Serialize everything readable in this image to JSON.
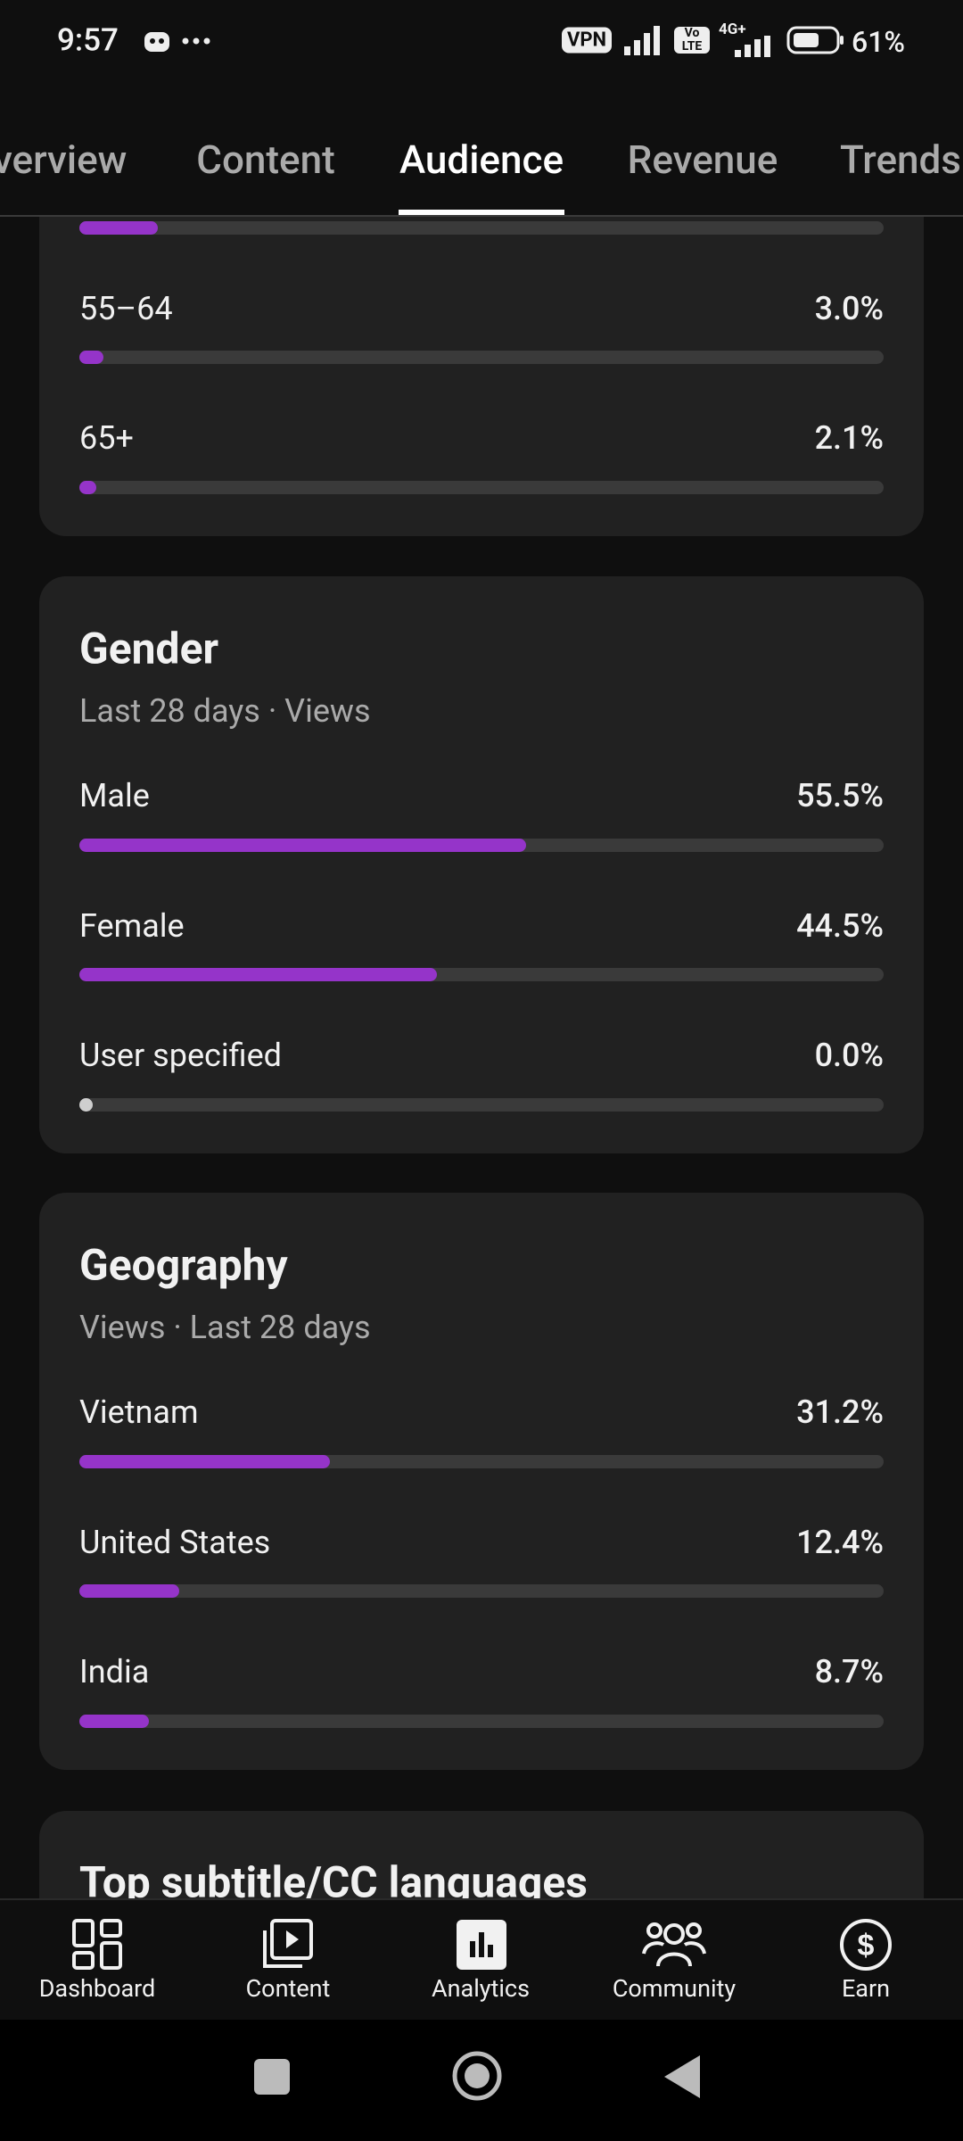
{
  "status_bar": {
    "time": "9:57",
    "vpn": "VPN",
    "volte": "Vo LTE",
    "network": "4G+",
    "battery": "61%"
  },
  "tabs": [
    "Overview",
    "Content",
    "Audience",
    "Revenue",
    "Trends"
  ],
  "selected_tab": 2,
  "bar_color": "#9534c9",
  "sections": [
    {
      "categories": [
        null,
        "55–64",
        "65+"
      ],
      "values": [
        9.8,
        3.0,
        2.1
      ],
      "value_labels": [
        null,
        "3.0%",
        "2.1%"
      ],
      "xlim": [
        0,
        100
      ]
    },
    {
      "title": "Gender",
      "subtitle": "Last 28 days · Views",
      "categories": [
        "Male",
        "Female",
        "User specified"
      ],
      "values": [
        55.5,
        44.5,
        0.0
      ],
      "value_labels": [
        "55.5%",
        "44.5%",
        "0.0%"
      ],
      "xlim": [
        0,
        100
      ]
    },
    {
      "title": "Geography",
      "subtitle": "Views · Last 28 days",
      "categories": [
        "Vietnam",
        "United States",
        "India"
      ],
      "values": [
        31.2,
        12.4,
        8.7
      ],
      "value_labels": [
        "31.2%",
        "12.4%",
        "8.7%"
      ],
      "xlim": [
        0,
        100
      ]
    },
    {
      "title": "Top subtitle/CC languages"
    }
  ],
  "bottom_nav": [
    "Dashboard",
    "Content",
    "Analytics",
    "Community",
    "Earn"
  ]
}
